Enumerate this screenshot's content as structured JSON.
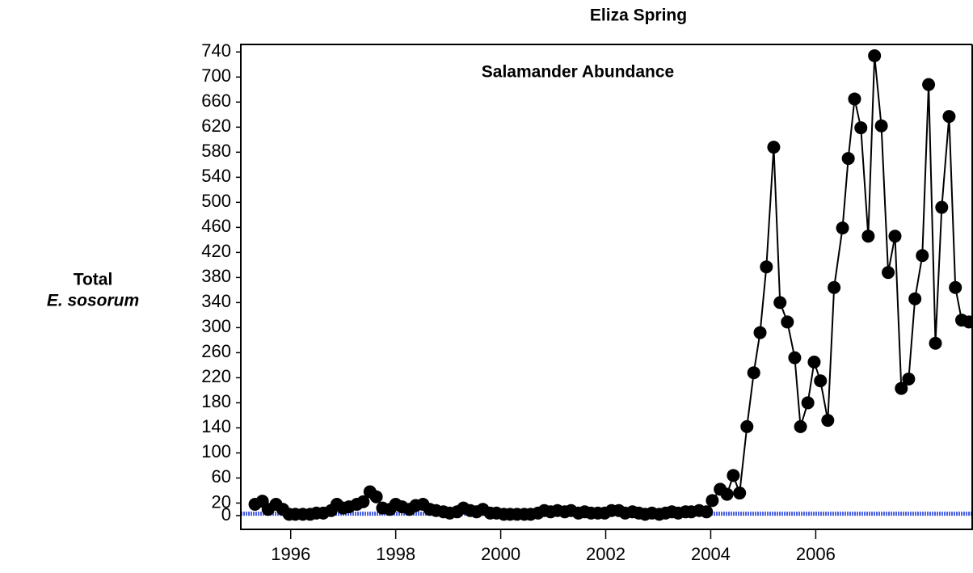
{
  "chart_data": {
    "type": "line",
    "title": "Eliza Spring",
    "annotation": "Salamander Abundance",
    "ylabel": [
      "Total",
      "E. sosorum"
    ],
    "x": [
      1995.32,
      1995.46,
      1995.57,
      1995.72,
      1995.85,
      1995.97,
      1996.09,
      1996.23,
      1996.37,
      1996.49,
      1996.62,
      1996.77,
      1996.88,
      1997.0,
      1997.11,
      1997.26,
      1997.38,
      1997.51,
      1997.63,
      1997.75,
      1997.89,
      1998.0,
      1998.12,
      1998.26,
      1998.38,
      1998.52,
      1998.65,
      1998.77,
      1998.91,
      1999.03,
      1999.17,
      1999.29,
      1999.42,
      1999.54,
      1999.66,
      1999.8,
      1999.92,
      2000.06,
      2000.18,
      2000.31,
      2000.45,
      2000.57,
      2000.71,
      2000.83,
      2000.95,
      2001.08,
      2001.22,
      2001.34,
      2001.48,
      2001.6,
      2001.72,
      2001.85,
      2001.98,
      2002.11,
      2002.25,
      2002.37,
      2002.51,
      2002.63,
      2002.75,
      2002.88,
      2003.02,
      2003.14,
      2003.26,
      2003.38,
      2003.52,
      2003.63,
      2003.78,
      2003.92,
      2004.03,
      2004.18,
      2004.31,
      2004.43,
      2004.55,
      2004.69,
      2004.82,
      2004.94,
      2005.06,
      2005.2,
      2005.32,
      2005.46,
      2005.6,
      2005.71,
      2005.85,
      2005.97,
      2006.09,
      2006.23,
      2006.35,
      2006.51,
      2006.62,
      2006.74,
      2006.86,
      2007.0,
      2007.12,
      2007.25,
      2007.38,
      2007.51,
      2007.63,
      2007.77,
      2007.89,
      2008.03,
      2008.15,
      2008.28,
      2008.4,
      2008.54,
      2008.66,
      2008.78,
      2008.92
    ],
    "series": [
      {
        "name": "Total E. sosorum",
        "color": "#000000",
        "values": [
          18,
          23,
          10,
          18,
          10,
          2,
          2,
          2,
          2,
          4,
          4,
          8,
          18,
          12,
          14,
          18,
          22,
          38,
          30,
          12,
          10,
          18,
          14,
          10,
          16,
          18,
          10,
          8,
          6,
          4,
          6,
          12,
          8,
          6,
          10,
          4,
          4,
          2,
          2,
          2,
          2,
          2,
          4,
          8,
          6,
          8,
          6,
          8,
          4,
          6,
          4,
          4,
          4,
          8,
          8,
          4,
          6,
          4,
          2,
          4,
          2,
          4,
          6,
          4,
          6,
          6,
          8,
          6,
          24,
          42,
          34,
          64,
          36,
          142,
          228,
          292,
          397,
          588,
          340,
          309,
          252,
          142,
          180,
          245,
          215,
          152,
          364,
          459,
          570,
          665,
          619,
          446,
          734,
          622,
          388,
          446,
          203,
          218,
          346,
          415,
          688,
          275,
          492,
          637,
          364,
          312,
          309
        ]
      }
    ],
    "reference_line": {
      "value": 3,
      "color": "#4a5ee0"
    },
    "xlim": [
      1995.05,
      2008.98
    ],
    "xticks": [
      1996,
      1998,
      2000,
      2002,
      2004,
      2006
    ],
    "ylim": [
      -22,
      752
    ],
    "yticks": [
      0,
      20,
      60,
      100,
      140,
      180,
      220,
      260,
      300,
      340,
      380,
      420,
      460,
      500,
      540,
      580,
      620,
      660,
      700,
      740
    ]
  }
}
